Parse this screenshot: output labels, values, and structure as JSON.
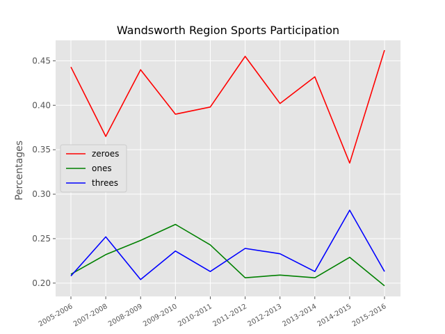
{
  "chart_data": {
    "type": "line",
    "title": "Wandsworth Region Sports Participation",
    "xlabel": "",
    "ylabel": "Percentages",
    "categories": [
      "2005-2006",
      "2007-2008",
      "2008-2009",
      "2009-2010",
      "2010-2011",
      "2011-2012",
      "2012-2013",
      "2013-2014",
      "2014-2015",
      "2015-2016"
    ],
    "ylim": [
      0.185,
      0.473
    ],
    "yticks": [
      "0.20",
      "0.25",
      "0.30",
      "0.35",
      "0.40",
      "0.45"
    ],
    "grid": true,
    "legend_position": "center-left",
    "series": [
      {
        "name": "zeroes",
        "color": "#ff0000",
        "values": [
          0.443,
          0.365,
          0.44,
          0.39,
          0.398,
          0.455,
          0.402,
          0.432,
          0.335,
          0.462
        ]
      },
      {
        "name": "ones",
        "color": "#008000",
        "values": [
          0.21,
          0.232,
          0.248,
          0.266,
          0.243,
          0.206,
          0.209,
          0.206,
          0.229,
          0.197
        ]
      },
      {
        "name": "threes",
        "color": "#0000ff",
        "values": [
          0.208,
          0.252,
          0.204,
          0.236,
          0.213,
          0.239,
          0.233,
          0.213,
          0.282,
          0.213
        ]
      }
    ]
  }
}
